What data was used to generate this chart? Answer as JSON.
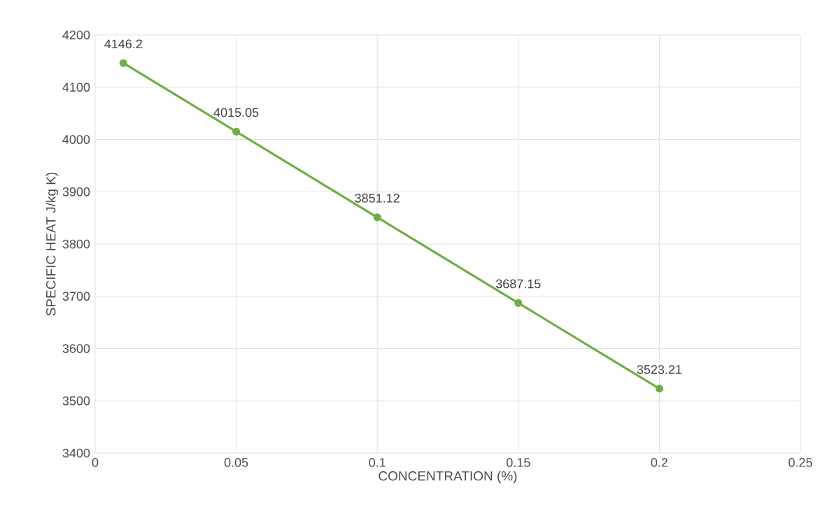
{
  "chart_data": {
    "type": "line",
    "xlabel": "CONCENTRATION (%)",
    "ylabel": "SPECIFIC HEAT J/kg K)",
    "x": [
      0.01,
      0.05,
      0.1,
      0.15,
      0.2
    ],
    "values": [
      4146.2,
      4015.05,
      3851.12,
      3687.15,
      3523.21
    ],
    "color": "#70ad47",
    "marker": "circle",
    "line_style": "solid",
    "data_labels": true,
    "grid": true,
    "xlim": [
      0,
      0.25
    ],
    "xticks": [
      0,
      0.05,
      0.1,
      0.15,
      0.2,
      0.25
    ],
    "ylim": [
      3400,
      4200
    ],
    "yticks": [
      3400,
      3500,
      3600,
      3700,
      3800,
      3900,
      4000,
      4100,
      4200
    ]
  }
}
